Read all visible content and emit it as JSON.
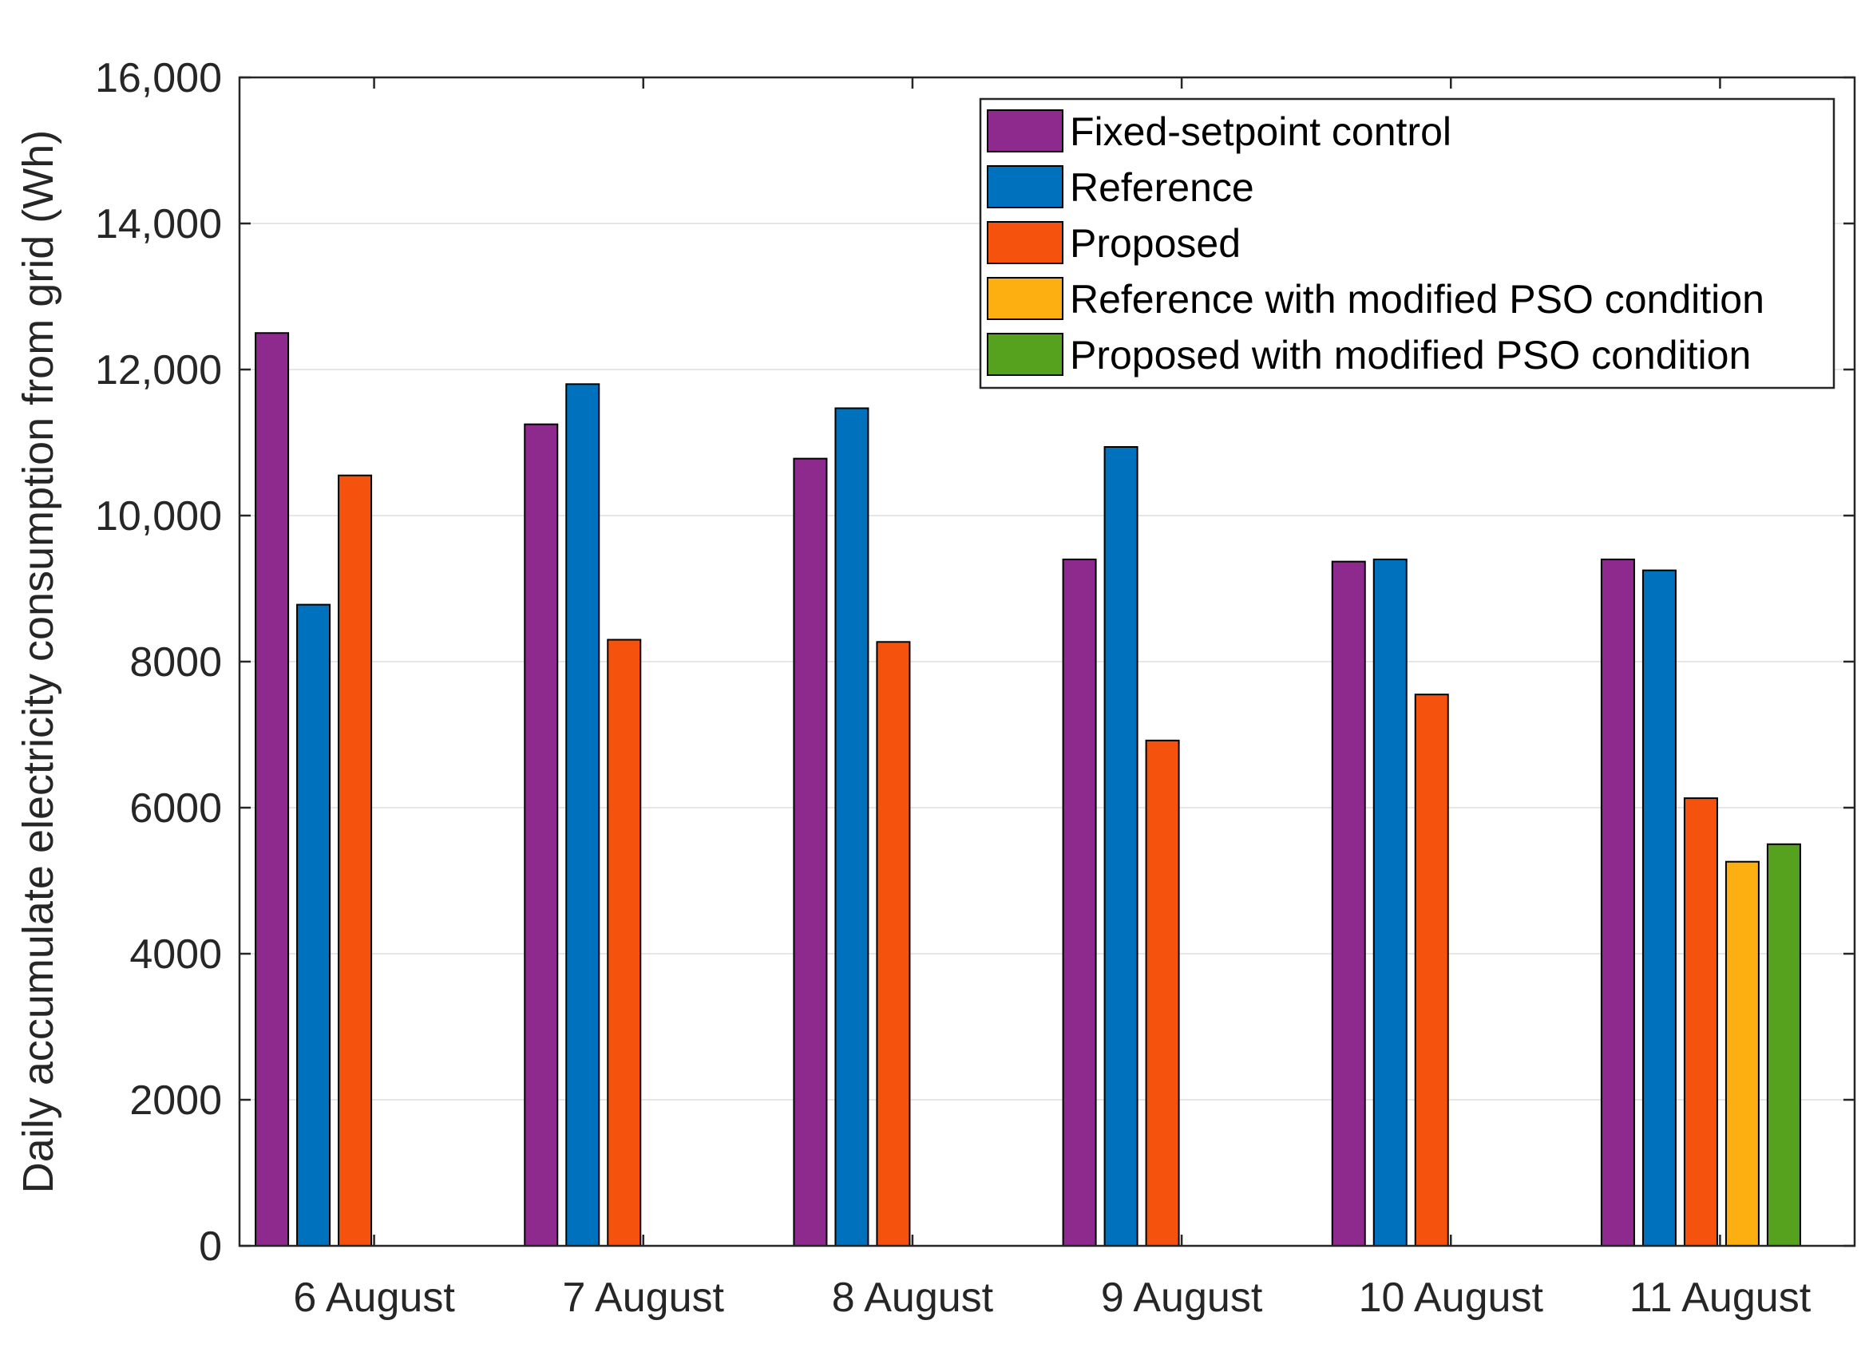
{
  "chart_data": {
    "type": "bar",
    "title": "",
    "xlabel": "",
    "ylabel": "Daily accumulate electricity consumption from grid (Wh)",
    "ylim": [
      0,
      16000
    ],
    "yticks": [
      0,
      2000,
      4000,
      6000,
      8000,
      10000,
      12000,
      14000,
      16000
    ],
    "ytick_labels": [
      "0",
      "2000",
      "4000",
      "6000",
      "8000",
      "10,000",
      "12,000",
      "14,000",
      "16,000"
    ],
    "grid": true,
    "legend_position": "top-right",
    "categories": [
      "6 August",
      "7 August",
      "8 August",
      "9 August",
      "10 August",
      "11 August"
    ],
    "series": [
      {
        "name": "Fixed-setpoint control",
        "color": "#8e2a8e",
        "values": [
          12500,
          11250,
          10780,
          9400,
          9370,
          9400
        ]
      },
      {
        "name": "Reference",
        "color": "#0072bd",
        "values": [
          8780,
          11800,
          11470,
          10940,
          9400,
          9250
        ]
      },
      {
        "name": "Proposed",
        "color": "#f5520e",
        "values": [
          10550,
          8300,
          8270,
          6920,
          7550,
          6130
        ]
      },
      {
        "name": "Reference with modified PSO condition",
        "color": "#fdae10",
        "values": [
          null,
          null,
          null,
          null,
          null,
          5260
        ]
      },
      {
        "name": "Proposed with modified PSO condition",
        "color": "#56a11d",
        "values": [
          null,
          null,
          null,
          null,
          null,
          5500
        ]
      }
    ]
  }
}
